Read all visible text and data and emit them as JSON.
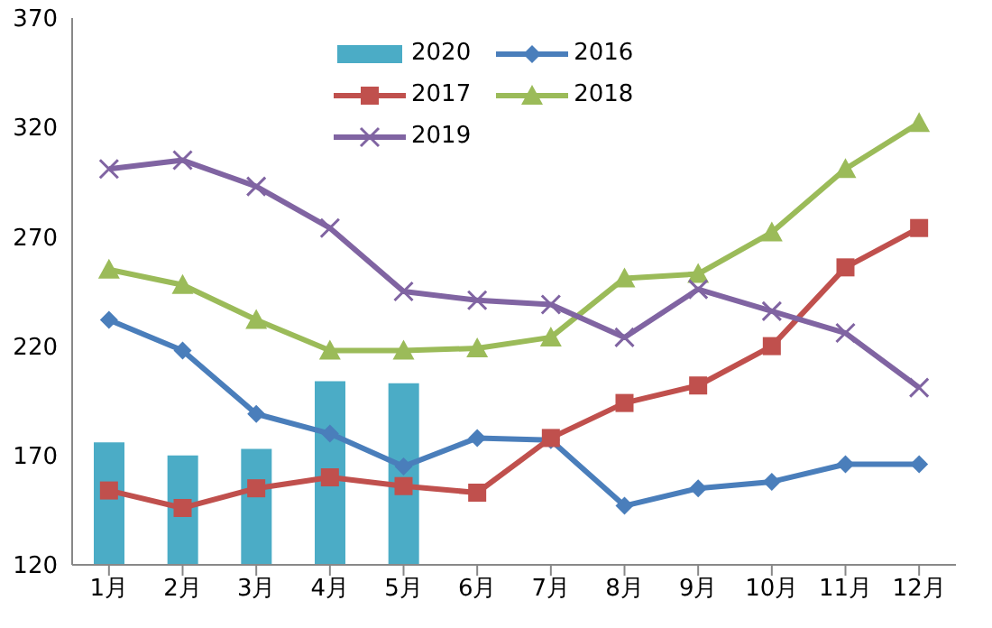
{
  "chart_data": {
    "type": "line",
    "categories": [
      "1月",
      "2月",
      "3月",
      "4月",
      "5月",
      "6月",
      "7月",
      "8月",
      "9月",
      "10月",
      "11月",
      "12月"
    ],
    "ylim": [
      120,
      370
    ],
    "yticks": [
      120,
      170,
      220,
      270,
      320,
      370
    ],
    "grid": false,
    "legend": "top",
    "series": [
      {
        "name": "2020",
        "type": "bar",
        "color": "#4bacc6",
        "values": [
          176,
          170,
          173,
          204,
          203,
          null,
          null,
          null,
          null,
          null,
          null,
          null
        ]
      },
      {
        "name": "2016",
        "color": "#4a7ebb",
        "marker": "diamond",
        "values": [
          232,
          218,
          189,
          180,
          165,
          178,
          177,
          147,
          155,
          158,
          166,
          166
        ]
      },
      {
        "name": "2017",
        "color": "#c0504d",
        "marker": "square",
        "values": [
          154,
          146,
          155,
          160,
          156,
          153,
          178,
          194,
          202,
          220,
          256,
          274
        ]
      },
      {
        "name": "2018",
        "color": "#9bbb59",
        "marker": "triangle",
        "values": [
          255,
          248,
          232,
          218,
          218,
          219,
          224,
          251,
          253,
          272,
          301,
          322
        ]
      },
      {
        "name": "2019",
        "color": "#8064a2",
        "marker": "cross",
        "values": [
          301,
          305,
          293,
          274,
          245,
          241,
          239,
          224,
          246,
          236,
          226,
          201
        ]
      }
    ]
  }
}
